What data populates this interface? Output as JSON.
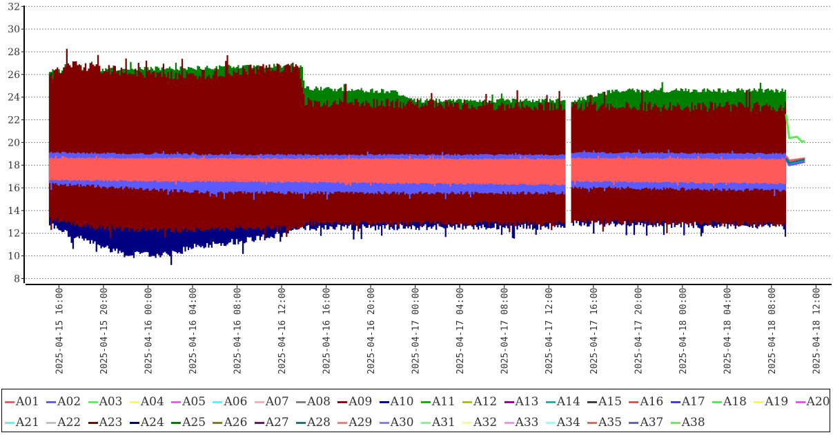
{
  "chart_data": {
    "type": "line",
    "title": "",
    "xlabel": "",
    "ylabel": "",
    "ylim": [
      7.6,
      32.2
    ],
    "y_ticks": [
      8,
      10,
      12,
      14,
      16,
      18,
      20,
      22,
      24,
      26,
      28,
      30,
      32
    ],
    "x_unit": "hours since 2025-04-15 00:00",
    "xlim": [
      13,
      85.4
    ],
    "x_ticks": [
      {
        "h": 16,
        "label": "2025-04-15 16:00"
      },
      {
        "h": 20,
        "label": "2025-04-15 20:00"
      },
      {
        "h": 24,
        "label": "2025-04-16 00:00"
      },
      {
        "h": 28,
        "label": "2025-04-16 04:00"
      },
      {
        "h": 32,
        "label": "2025-04-16 08:00"
      },
      {
        "h": 36,
        "label": "2025-04-16 12:00"
      },
      {
        "h": 40,
        "label": "2025-04-16 16:00"
      },
      {
        "h": 44,
        "label": "2025-04-16 20:00"
      },
      {
        "h": 48,
        "label": "2025-04-17 00:00"
      },
      {
        "h": 52,
        "label": "2025-04-17 04:00"
      },
      {
        "h": 56,
        "label": "2025-04-17 08:00"
      },
      {
        "h": 60,
        "label": "2025-04-17 12:00"
      },
      {
        "h": 64,
        "label": "2025-04-17 16:00"
      },
      {
        "h": 68,
        "label": "2025-04-17 20:00"
      },
      {
        "h": 72,
        "label": "2025-04-18 00:00"
      },
      {
        "h": 76,
        "label": "2025-04-18 04:00"
      },
      {
        "h": 80,
        "label": "2025-04-18 08:00"
      },
      {
        "h": 84,
        "label": "2025-04-18 12:00"
      }
    ],
    "grid": "horizontal-dashed",
    "legend_position": "bottom",
    "envelopes": [
      {
        "name": "A24",
        "color": "#000080",
        "jitter": [
          0.2,
          0.6
        ],
        "segments": [
          [
            [
              15.1,
              12.5,
              20
            ],
            [
              17,
              11.5,
              20
            ],
            [
              20,
              10.5,
              20
            ],
            [
              22,
              9.8,
              20
            ],
            [
              26,
              9.8,
              20
            ],
            [
              28,
              10.5,
              20
            ],
            [
              32,
              11,
              20
            ],
            [
              36,
              11.6,
              20
            ],
            [
              38,
              12.2,
              20
            ],
            [
              61.5,
              12.3,
              20
            ]
          ],
          [
            [
              62,
              12.6,
              20
            ],
            [
              81.3,
              12.3,
              20
            ]
          ]
        ]
      },
      {
        "name": "A25",
        "color": "#008000",
        "jitter": [
          0.4,
          0.2
        ],
        "segments": [
          [
            [
              15.1,
              19,
              26.5
            ],
            [
              37.8,
              19,
              27
            ],
            [
              38,
              19,
              25
            ],
            [
              46,
              19,
              24.7
            ],
            [
              48,
              19,
              23.9
            ],
            [
              61.5,
              19,
              23.9
            ]
          ],
          [
            [
              62,
              19,
              23.8
            ],
            [
              66,
              19,
              24.8
            ],
            [
              81.3,
              19,
              24.8
            ]
          ]
        ]
      },
      {
        "name": "A23",
        "color": "#800000",
        "jitter": [
          0.9,
          0.5
        ],
        "segments": [
          [
            [
              15.1,
              13,
              26.3
            ],
            [
              17,
              12.6,
              27.3
            ],
            [
              20,
              12.2,
              26.9
            ],
            [
              24,
              12,
              26.4
            ],
            [
              28,
              12,
              26.3
            ],
            [
              32,
              12.2,
              26.8
            ],
            [
              37.5,
              12.2,
              27.1
            ],
            [
              38,
              12.6,
              24
            ],
            [
              61.5,
              12.6,
              23.6
            ]
          ],
          [
            [
              62,
              12.8,
              23.6
            ],
            [
              81.3,
              12.5,
              23.6
            ]
          ]
        ]
      },
      {
        "name": "A02",
        "color": "#5a5aff",
        "jitter": [
          0.15,
          0.3
        ],
        "segments": [
          [
            [
              15.1,
              16.2,
              19.2
            ],
            [
              30,
              15.4,
              19
            ],
            [
              61.5,
              15.4,
              19.0
            ]
          ],
          [
            [
              62,
              15.9,
              19.2
            ],
            [
              81.3,
              15.6,
              19.1
            ]
          ]
        ]
      },
      {
        "name": "A01",
        "color": "#ff5a5a",
        "jitter": [
          0.12,
          0.15
        ],
        "segments": [
          [
            [
              15.1,
              16.6,
              18.7
            ],
            [
              61.5,
              16.2,
              18.6
            ]
          ],
          [
            [
              62,
              16.5,
              18.7
            ],
            [
              81.3,
              16.3,
              18.6
            ]
          ]
        ]
      }
    ],
    "tail_series": [
      {
        "name": "A18",
        "color": "#55ee55",
        "points": [
          [
            81.3,
            22.5
          ],
          [
            81.6,
            20.4
          ],
          [
            82.3,
            20.5
          ],
          [
            82.7,
            20.1
          ],
          [
            83,
            20.1
          ]
        ]
      },
      {
        "name": "A02",
        "color": "#5a5aff",
        "points": [
          [
            81.3,
            18.5
          ],
          [
            81.6,
            18.0
          ],
          [
            83,
            18.3
          ]
        ]
      },
      {
        "name": "A01",
        "color": "#ff5a5a",
        "points": [
          [
            81.3,
            18.8
          ],
          [
            81.6,
            18.4
          ],
          [
            83,
            18.6
          ]
        ]
      },
      {
        "name": "A28",
        "color": "#008080",
        "points": [
          [
            81.3,
            18.6
          ],
          [
            81.6,
            18.2
          ],
          [
            83,
            18.5
          ]
        ]
      }
    ],
    "legend": [
      {
        "name": "A01",
        "color": "#f06060"
      },
      {
        "name": "A02",
        "color": "#6060e0"
      },
      {
        "name": "A03",
        "color": "#60f060"
      },
      {
        "name": "A04",
        "color": "#f8f870"
      },
      {
        "name": "A05",
        "color": "#f060f0"
      },
      {
        "name": "A06",
        "color": "#60f0f8"
      },
      {
        "name": "A07",
        "color": "#f8b0b0"
      },
      {
        "name": "A08",
        "color": "#808080"
      },
      {
        "name": "A09",
        "color": "#a00000"
      },
      {
        "name": "A10",
        "color": "#0000a0"
      },
      {
        "name": "A11",
        "color": "#10b010"
      },
      {
        "name": "A12",
        "color": "#b8b820"
      },
      {
        "name": "A13",
        "color": "#a000a0"
      },
      {
        "name": "A14",
        "color": "#20b0b0"
      },
      {
        "name": "A15",
        "color": "#404040"
      },
      {
        "name": "A16",
        "color": "#f05050"
      },
      {
        "name": "A17",
        "color": "#4040e0"
      },
      {
        "name": "A18",
        "color": "#50f050"
      },
      {
        "name": "A19",
        "color": "#f8f850"
      },
      {
        "name": "A20",
        "color": "#f050f0"
      },
      {
        "name": "A21",
        "color": "#60f0f8"
      },
      {
        "name": "A22",
        "color": "#c0c0c0"
      },
      {
        "name": "A23",
        "color": "#800000"
      },
      {
        "name": "A24",
        "color": "#000080"
      },
      {
        "name": "A25",
        "color": "#008000"
      },
      {
        "name": "A26",
        "color": "#808000"
      },
      {
        "name": "A27",
        "color": "#800080"
      },
      {
        "name": "A28",
        "color": "#008080"
      },
      {
        "name": "A29",
        "color": "#f08080"
      },
      {
        "name": "A30",
        "color": "#8080f0"
      },
      {
        "name": "A31",
        "color": "#90f090"
      },
      {
        "name": "A32",
        "color": "#f8f8a0"
      },
      {
        "name": "A33",
        "color": "#f090f0"
      },
      {
        "name": "A34",
        "color": "#a0f8f8"
      },
      {
        "name": "A35",
        "color": "#f06060"
      },
      {
        "name": "A37",
        "color": "#6060e0"
      },
      {
        "name": "A38",
        "color": "#60f060"
      }
    ]
  }
}
